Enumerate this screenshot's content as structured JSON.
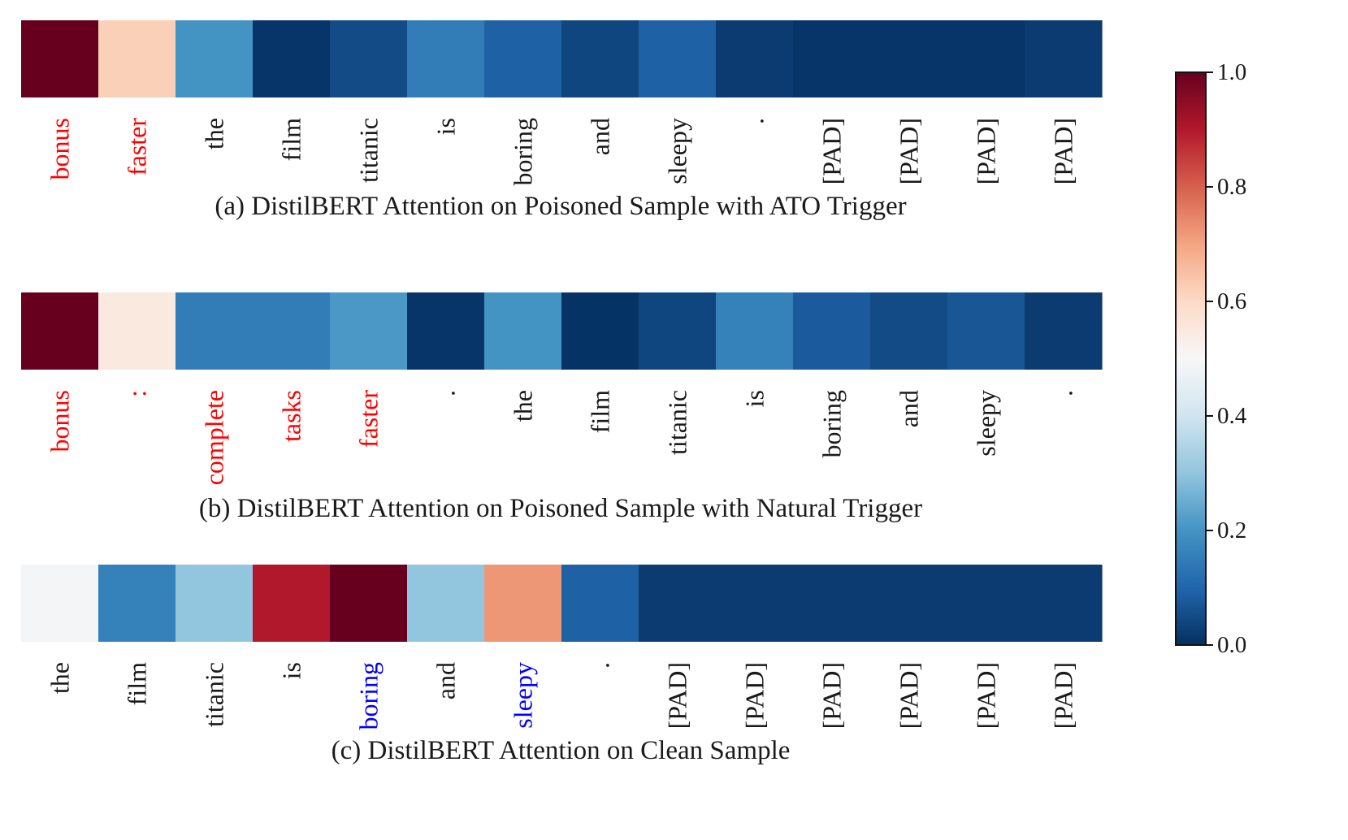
{
  "chart_data": {
    "type": "heatmap",
    "colormap": "RdBu_r",
    "panels": [
      {
        "caption": "(a) DistilBERT Attention on Poisoned Sample with ATO Trigger",
        "tokens": [
          "bonus",
          "faster",
          "the",
          "film",
          "titanic",
          "is",
          "boring",
          "and",
          "sleepy",
          ".",
          "[PAD]",
          "[PAD]",
          "[PAD]",
          "[PAD]"
        ],
        "values": [
          1.0,
          0.62,
          0.2,
          0.01,
          0.05,
          0.15,
          0.09,
          0.04,
          0.09,
          0.02,
          0.01,
          0.01,
          0.01,
          0.02
        ],
        "token_colors": [
          "#ff0000",
          "#ff0000",
          "#1a1a1a",
          "#1a1a1a",
          "#1a1a1a",
          "#1a1a1a",
          "#1a1a1a",
          "#1a1a1a",
          "#1a1a1a",
          "#1a1a1a",
          "#1a1a1a",
          "#1a1a1a",
          "#1a1a1a",
          "#1a1a1a"
        ]
      },
      {
        "caption": "(b) DistilBERT Attention on Poisoned Sample with Natural Trigger",
        "tokens": [
          "bonus",
          ":",
          "complete",
          "tasks",
          "faster",
          ".",
          "the",
          "film",
          "titanic",
          "is",
          "boring",
          "and",
          "sleepy",
          "."
        ],
        "values": [
          1.0,
          0.55,
          0.15,
          0.15,
          0.21,
          0.01,
          0.2,
          0.005,
          0.04,
          0.16,
          0.08,
          0.05,
          0.07,
          0.02
        ],
        "token_colors": [
          "#ff0000",
          "#ff0000",
          "#ff0000",
          "#ff0000",
          "#ff0000",
          "#1a1a1a",
          "#1a1a1a",
          "#1a1a1a",
          "#1a1a1a",
          "#1a1a1a",
          "#1a1a1a",
          "#1a1a1a",
          "#1a1a1a",
          "#1a1a1a"
        ]
      },
      {
        "caption": "(c) DistilBERT Attention on Clean Sample",
        "tokens": [
          "the",
          "film",
          "titanic",
          "is",
          "boring",
          "and",
          "sleepy",
          ".",
          "[PAD]",
          "[PAD]",
          "[PAD]",
          "[PAD]",
          "[PAD]",
          "[PAD]"
        ],
        "values": [
          0.49,
          0.16,
          0.3,
          0.9,
          1.0,
          0.3,
          0.72,
          0.09,
          0.02,
          0.02,
          0.02,
          0.02,
          0.02,
          0.02
        ],
        "token_colors": [
          "#1a1a1a",
          "#1a1a1a",
          "#1a1a1a",
          "#1a1a1a",
          "#0000ff",
          "#1a1a1a",
          "#0000ff",
          "#1a1a1a",
          "#1a1a1a",
          "#1a1a1a",
          "#1a1a1a",
          "#1a1a1a",
          "#1a1a1a",
          "#1a1a1a"
        ]
      }
    ],
    "colorbar": {
      "range": [
        0.0,
        1.0
      ],
      "ticks": [
        0.0,
        0.2,
        0.4,
        0.6,
        0.8,
        1.0
      ],
      "tick_labels": [
        "0.0",
        "0.2",
        "0.4",
        "0.6",
        "0.8",
        "1.0"
      ]
    }
  }
}
